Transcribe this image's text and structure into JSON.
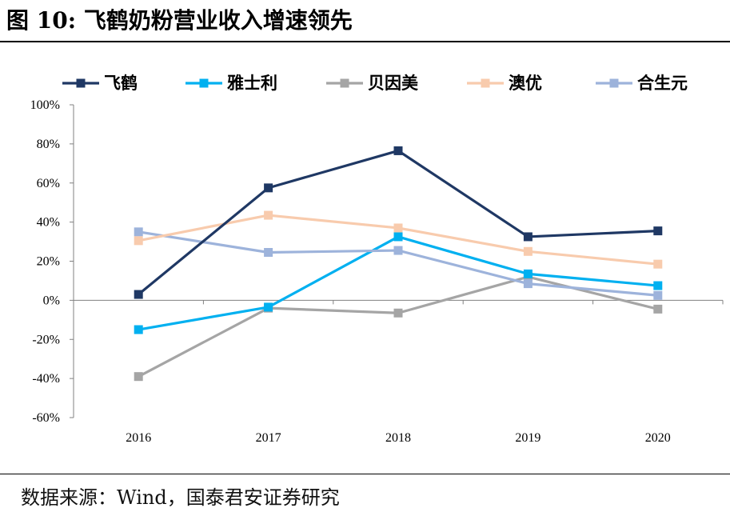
{
  "figure": {
    "title": "图 10:  飞鹤奶粉营业收入增速领先",
    "source": "数据来源：Wind，国泰君安证券研究"
  },
  "chart_data": {
    "type": "line",
    "title": "",
    "xlabel": "",
    "ylabel": "",
    "categories": [
      "2016",
      "2017",
      "2018",
      "2019",
      "2020"
    ],
    "ylim": [
      -60,
      100
    ],
    "yticks": [
      "100%",
      "80%",
      "60%",
      "40%",
      "20%",
      "0%",
      "-20%",
      "-40%",
      "-60%"
    ],
    "legend_position": "top",
    "grid": false,
    "series": [
      {
        "name": "飞鹤",
        "color": "#1F3864",
        "values": [
          3,
          57.5,
          76.5,
          32.5,
          35.5
        ]
      },
      {
        "name": "雅士利",
        "color": "#00B0F0",
        "values": [
          -15,
          -3.5,
          32.5,
          13.5,
          7.5
        ]
      },
      {
        "name": "贝因美",
        "color": "#A5A5A5",
        "values": [
          -39,
          -4,
          -6.5,
          12,
          -4.5
        ]
      },
      {
        "name": "澳优",
        "color": "#F8CBAD",
        "values": [
          30.5,
          43.5,
          37,
          25,
          18.5
        ]
      },
      {
        "name": "合生元",
        "color": "#9DB3DB",
        "values": [
          35,
          24.5,
          25.5,
          8.5,
          2.5
        ]
      }
    ]
  }
}
